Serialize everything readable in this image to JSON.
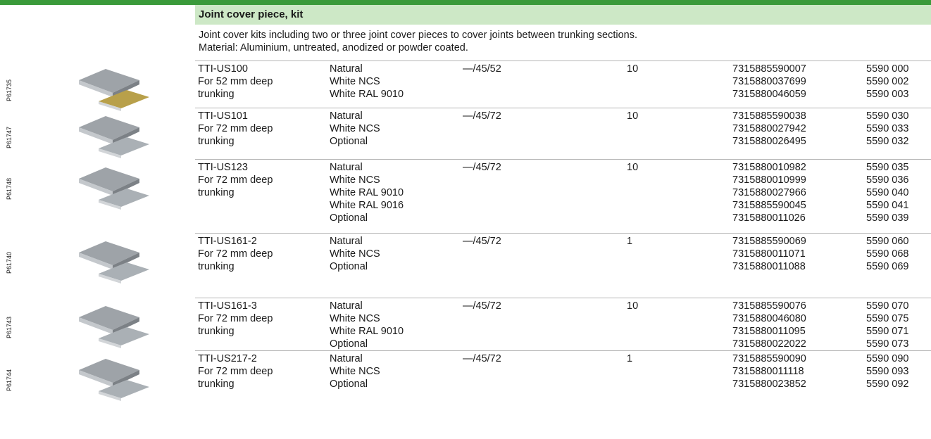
{
  "section": {
    "title": "Joint cover piece, kit",
    "description": [
      "Joint cover kits including two or three joint cover pieces to cover joints between trunking sections.",
      "Material: Aluminium, untreated, anodized or powder coated."
    ]
  },
  "rows": [
    {
      "picture": "P61735",
      "name": [
        "TTI-US100",
        "For 52 mm deep",
        "trunking"
      ],
      "colors": [
        "Natural",
        "White NCS",
        "White RAL 9010"
      ],
      "dimensions": "—/45/52",
      "quantity": 10,
      "ean": [
        "7315885590007",
        "7315880037699",
        "7315880046059"
      ],
      "refs": [
        "5590 000",
        "5590 002",
        "5590 003"
      ]
    },
    {
      "picture": "P61747",
      "name": [
        "TTI-US101",
        "For 72 mm deep",
        "trunking"
      ],
      "colors": [
        "Natural",
        "White NCS",
        "Optional"
      ],
      "dimensions": "—/45/72",
      "quantity": 10,
      "ean": [
        "7315885590038",
        "7315880027942",
        "7315880026495"
      ],
      "refs": [
        "5590 030",
        "5590 033",
        "5590 032"
      ]
    },
    {
      "picture": "P61748",
      "name": [
        "TTI-US123",
        "For 72 mm deep",
        "trunking"
      ],
      "colors": [
        "Natural",
        "White NCS",
        "White RAL 9010",
        "White RAL 9016",
        "Optional"
      ],
      "dimensions": "—/45/72",
      "quantity": 10,
      "ean": [
        "7315880010982",
        "7315880010999",
        "7315880027966",
        "7315885590045",
        "7315880011026"
      ],
      "refs": [
        "5590 035",
        "5590 036",
        "5590 040",
        "5590 041",
        "5590 039"
      ]
    },
    {
      "picture": "P61740",
      "name": [
        "TTI-US161-2",
        "For 72 mm deep",
        "trunking"
      ],
      "colors": [
        "Natural",
        "White NCS",
        "Optional"
      ],
      "dimensions": "—/45/72",
      "quantity": 1,
      "ean": [
        "7315885590069",
        "7315880011071",
        "7315880011088"
      ],
      "refs": [
        "5590 060",
        "5590 068",
        "5590 069"
      ]
    },
    {
      "picture": "P61743",
      "name": [
        "TTI-US161-3",
        "For 72 mm deep",
        "trunking"
      ],
      "colors": [
        "Natural",
        "White NCS",
        "White RAL 9010",
        "Optional"
      ],
      "dimensions": "—/45/72",
      "quantity": 10,
      "ean": [
        "7315885590076",
        "7315880046080",
        "7315880011095",
        "7315880022022"
      ],
      "refs": [
        "5590 070",
        "5590 075",
        "5590 071",
        "5590 073"
      ]
    },
    {
      "picture": "P61744",
      "name": [
        "TTI-US217-2",
        "For 72 mm deep",
        "trunking"
      ],
      "colors": [
        "Natural",
        "White NCS",
        "Optional"
      ],
      "dimensions": "—/45/72",
      "quantity": 1,
      "ean": [
        "7315885590090",
        "7315880011118",
        "7315880023852"
      ],
      "refs": [
        "5590 090",
        "5590 093",
        "5590 092"
      ]
    }
  ]
}
